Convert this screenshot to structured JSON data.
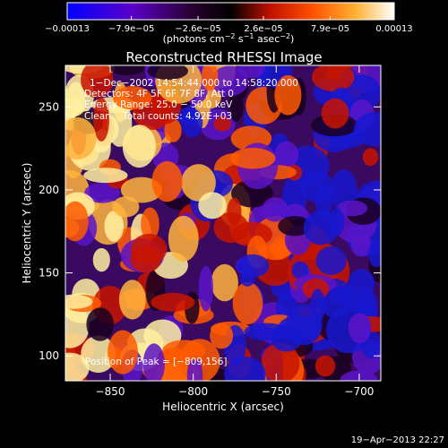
{
  "chart_data": {
    "type": "heatmap",
    "title": "Reconstructed RHESSI Image",
    "xlabel": "Heliocentric X (arcsec)",
    "ylabel": "Heliocentric Y (arcsec)",
    "xlim": [
      -877,
      -687
    ],
    "ylim": [
      85,
      275
    ],
    "xticks": [
      -850,
      -800,
      -750,
      -700
    ],
    "xtick_labels": [
      "−850",
      "−800",
      "−750",
      "−700"
    ],
    "yticks": [
      100,
      150,
      200,
      250
    ],
    "ytick_labels": [
      "100",
      "150",
      "200",
      "250"
    ],
    "colorbar": {
      "ticks": [
        -0.00013,
        -7.9e-05,
        -2.6e-05,
        2.6e-05,
        7.9e-05,
        0.00013
      ],
      "tick_labels": [
        "−0.00013",
        "−7.9e−05",
        "−2.6e−05",
        "2.6e−05",
        "7.9e−05",
        "0.00013"
      ],
      "unit_label": "(photons cm",
      "unit_exp1": "−2",
      "unit_mid": " s",
      "unit_exp2": "−1",
      "unit_mid2": " asec",
      "unit_exp3": "−2",
      "unit_end": ")",
      "colors": [
        "#0000ff",
        "#6600cc",
        "#000000",
        "#ff2200",
        "#ff8800",
        "#ffff88",
        "#ffffff"
      ]
    },
    "annotations": {
      "time": "1−Dec−2002 14:54:44.000 to 14:58:20.000",
      "detectors": "Detectors: 4F 5F 6F 7F 8F, Att 0",
      "energy": "Energy Range: 25.0 − 50.0 keV",
      "clean": "Clean    Total counts: 4.92E+03",
      "peak": "Position of Peak = [−809,156]"
    },
    "grid": false,
    "peak_position": [
      -809,
      156
    ]
  },
  "footer": {
    "timestamp": "19−Apr−2013 22:27"
  }
}
